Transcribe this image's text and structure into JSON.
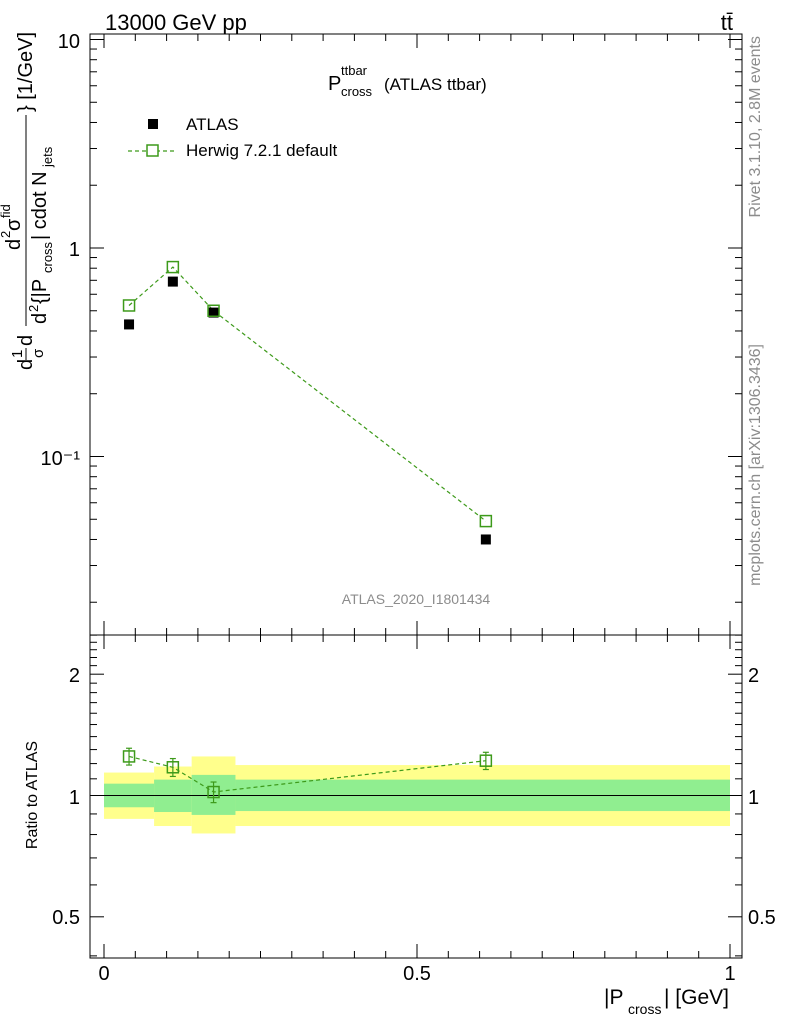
{
  "header": {
    "energy_label": "13000 GeV pp",
    "process_label": "tt̄"
  },
  "side_labels": {
    "rivet": "Rivet 3.1.10,  2.8M events",
    "mcplots": "mcplots.cern.ch [arXiv:1306.3436]"
  },
  "analysis_id": "ATLAS_2020_I1801434",
  "chart_data": [
    {
      "type": "scatter",
      "panel": "main",
      "title": "P_cross^ttbar (ATLAS ttbar)",
      "ylabel": "d¹/σ d²σ^fid / d²{|P_cross| cdot N_jets} [1/GeV]",
      "yscale": "log",
      "xlim": [
        -0.02,
        1.02
      ],
      "ylim": [
        0.018,
        10
      ],
      "y_tick_labels": [
        "10⁻¹",
        "1",
        "10"
      ],
      "legend_position": "top-left",
      "series": [
        {
          "name": "ATLAS",
          "color": "#000000",
          "marker": "filled-square",
          "x": [
            0.04,
            0.11,
            0.175,
            0.61
          ],
          "y": [
            0.43,
            0.69,
            0.49,
            0.04
          ]
        },
        {
          "name": "Herwig 7.2.1 default",
          "color": "#3d9a1a",
          "marker": "open-square",
          "line": "dashed",
          "x": [
            0.04,
            0.11,
            0.175,
            0.61
          ],
          "y": [
            0.53,
            0.81,
            0.5,
            0.049
          ]
        }
      ]
    },
    {
      "type": "scatter",
      "panel": "ratio",
      "ylabel": "Ratio to ATLAS",
      "xlabel": "|P_cross| [GeV]",
      "yscale": "log",
      "xlim": [
        -0.02,
        1.02
      ],
      "ylim": [
        0.4,
        2.5
      ],
      "x_ticks": [
        0,
        0.5,
        1
      ],
      "y_ticks": [
        0.5,
        1,
        2
      ],
      "bands": [
        {
          "x0": 0.0,
          "x1": 0.08,
          "stat_lo": 0.935,
          "stat_hi": 1.07,
          "tot_lo": 0.875,
          "tot_hi": 1.14
        },
        {
          "x0": 0.08,
          "x1": 0.14,
          "stat_lo": 0.91,
          "stat_hi": 1.095,
          "tot_lo": 0.84,
          "tot_hi": 1.18
        },
        {
          "x0": 0.14,
          "x1": 0.21,
          "stat_lo": 0.895,
          "stat_hi": 1.125,
          "tot_lo": 0.805,
          "tot_hi": 1.25
        },
        {
          "x0": 0.21,
          "x1": 1.0,
          "stat_lo": 0.915,
          "stat_hi": 1.095,
          "tot_lo": 0.84,
          "tot_hi": 1.19
        }
      ],
      "series": [
        {
          "name": "Herwig 7.2.1 default",
          "color": "#3d9a1a",
          "x": [
            0.04,
            0.11,
            0.175,
            0.61
          ],
          "y": [
            1.25,
            1.175,
            1.02,
            1.22
          ],
          "yerr": [
            0.06,
            0.06,
            0.06,
            0.06
          ]
        }
      ]
    }
  ]
}
